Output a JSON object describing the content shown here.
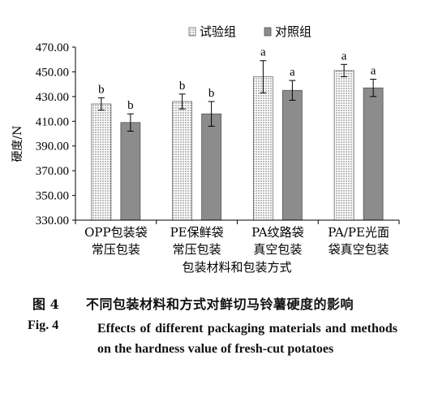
{
  "chart_data": {
    "type": "bar",
    "categories": [
      [
        "OPP包装袋",
        "常压包装"
      ],
      [
        "PE保鲜袋",
        "常压包装"
      ],
      [
        "PA纹路袋",
        "真空包装"
      ],
      [
        "PA/PE光面",
        "袋真空包装"
      ]
    ],
    "series": [
      {
        "name": "试验组",
        "values": [
          424,
          426,
          446,
          451
        ],
        "errors": [
          5,
          6,
          13,
          5
        ],
        "labels": [
          "b",
          "b",
          "a",
          "a"
        ],
        "fill": "dots"
      },
      {
        "name": "对照组",
        "values": [
          409,
          416,
          435,
          437
        ],
        "errors": [
          7,
          10,
          8,
          7
        ],
        "labels": [
          "b",
          "b",
          "a",
          "a"
        ],
        "fill": "#8c8c8c"
      }
    ],
    "ylabel": "硬度/N",
    "xlabel": "包装材料和包装方式",
    "ylim": [
      330,
      470
    ],
    "yticks": [
      "330.00",
      "350.00",
      "370.00",
      "390.00",
      "410.00",
      "430.00",
      "450.00",
      "470.00"
    ],
    "grid": false,
    "legend": "top"
  },
  "caption": {
    "cn_number": "图 4",
    "cn_text": "不同包装材料和方式对鲜切马铃薯硬度的影响",
    "en_number": "Fig. 4",
    "en_text": "Effects of different packaging materials and methods on the hardness value of fresh-cut potatoes"
  }
}
